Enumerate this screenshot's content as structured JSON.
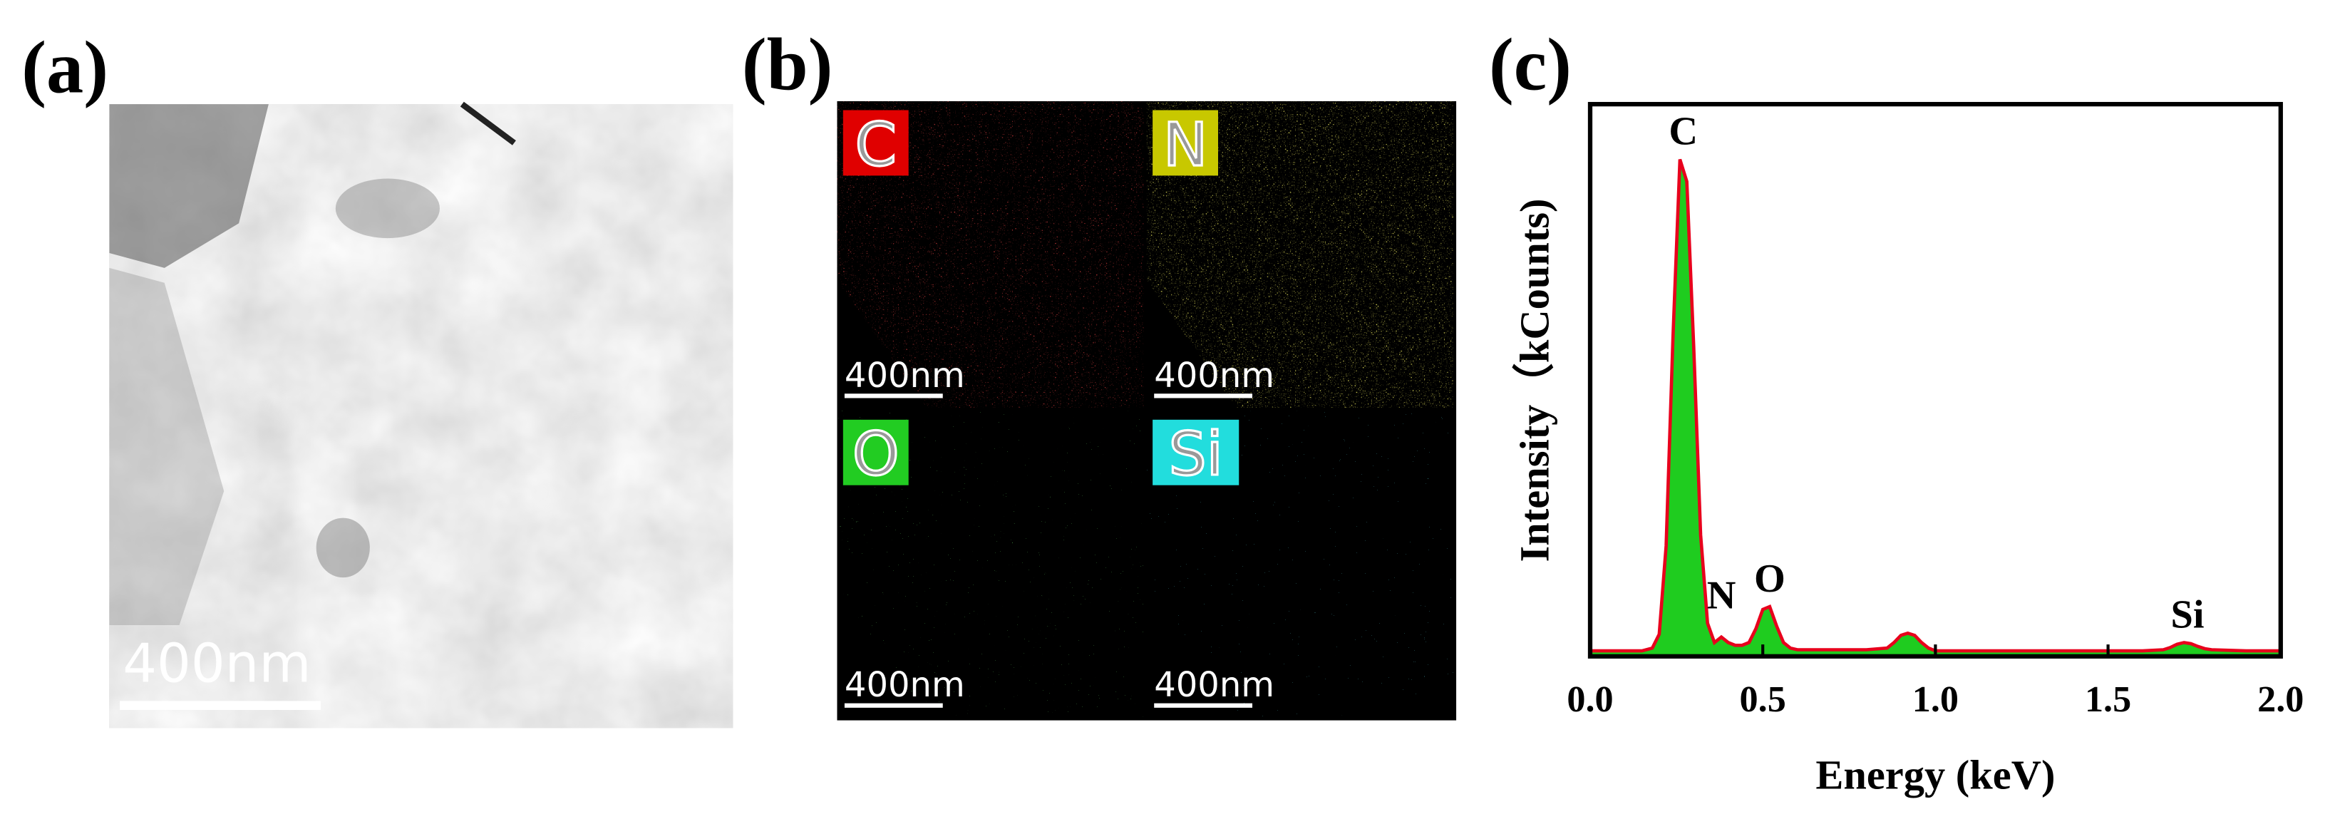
{
  "panels": {
    "a": {
      "label": "(a)",
      "scale_bar": "400nm"
    },
    "b": {
      "label": "(b)",
      "maps": [
        {
          "element": "C",
          "scale_bar": "400nm"
        },
        {
          "element": "N",
          "scale_bar": "400nm"
        },
        {
          "element": "O",
          "scale_bar": "400nm"
        },
        {
          "element": "Si",
          "scale_bar": "400nm"
        }
      ]
    },
    "c": {
      "label": "(c)"
    }
  },
  "chart_data": {
    "type": "area",
    "xlabel": "Energy (keV)",
    "ylabel": "Intensity（kCounts)",
    "x": [
      0,
      0.05,
      0.1,
      0.15,
      0.18,
      0.2,
      0.22,
      0.24,
      0.26,
      0.28,
      0.3,
      0.32,
      0.34,
      0.36,
      0.38,
      0.4,
      0.42,
      0.44,
      0.46,
      0.48,
      0.5,
      0.52,
      0.54,
      0.56,
      0.58,
      0.6,
      0.7,
      0.8,
      0.86,
      0.88,
      0.9,
      0.92,
      0.94,
      0.96,
      0.98,
      1.0,
      1.1,
      1.2,
      1.3,
      1.4,
      1.5,
      1.6,
      1.66,
      1.68,
      1.7,
      1.72,
      1.74,
      1.76,
      1.78,
      1.8,
      1.9,
      2.0
    ],
    "series": [
      {
        "color": "#e8001c",
        "fill": "#1fcc1f",
        "values": [
          1,
          1,
          1,
          1,
          1.5,
          4,
          20,
          58,
          90,
          86,
          56,
          22,
          6,
          2.5,
          3.5,
          2.5,
          2,
          2,
          2.5,
          5,
          8.5,
          9,
          5.5,
          2.5,
          1.5,
          1.2,
          1.2,
          1.2,
          1.5,
          2.5,
          3.8,
          4.2,
          3.8,
          2.5,
          1.5,
          1,
          1,
          1,
          1,
          1,
          1,
          1,
          1.2,
          1.6,
          2.2,
          2.5,
          2.3,
          1.8,
          1.4,
          1.2,
          1,
          1
        ]
      }
    ],
    "xlim": [
      0,
      2
    ],
    "ylim": [
      0,
      100
    ],
    "xticks": [
      {
        "value": 0,
        "label": "0.0"
      },
      {
        "value": 0.5,
        "label": "0.5"
      },
      {
        "value": 1,
        "label": "1.0"
      },
      {
        "value": 1.5,
        "label": "1.5"
      },
      {
        "value": 2,
        "label": "2.0"
      }
    ],
    "annotations": [
      {
        "text": "C",
        "x": 0.27
      },
      {
        "text": "N",
        "x": 0.38
      },
      {
        "text": "O",
        "x": 0.52
      },
      {
        "text": "Si",
        "x": 1.73
      }
    ]
  }
}
